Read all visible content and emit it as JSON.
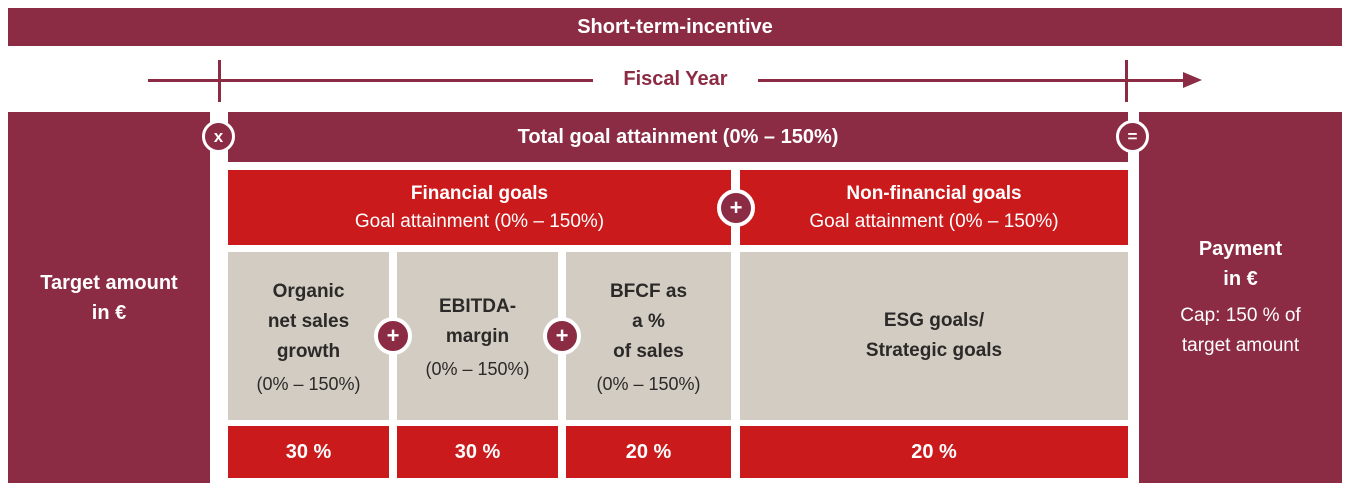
{
  "colors": {
    "maroon": "#8c2b44",
    "red": "#cb1a1c",
    "gray": "#d3ccc3",
    "text_dark": "#2b2a28",
    "white": "#ffffff"
  },
  "header": {
    "title": "Short-term-incentive"
  },
  "timeline": {
    "label": "Fiscal Year"
  },
  "operators": {
    "multiply": "x",
    "equals": "=",
    "plus": "+"
  },
  "left_panel": {
    "line1": "Target amount",
    "line2": "in €"
  },
  "right_panel": {
    "line1": "Payment",
    "line2": "in €",
    "line3": "Cap: 150 % of",
    "line4": "target amount"
  },
  "total_bar": {
    "label": "Total goal attainment (0% – 150%)"
  },
  "goal_groups": [
    {
      "title": "Financial goals",
      "subtitle": "Goal attainment (0% – 150%)"
    },
    {
      "title": "Non-financial goals",
      "subtitle": "Goal attainment (0% – 150%)"
    }
  ],
  "criteria": [
    {
      "name_lines": [
        "Organic",
        "net sales",
        "growth"
      ],
      "range": "(0% – 150%)",
      "weight": "30 %"
    },
    {
      "name_lines": [
        "EBITDA-",
        "margin"
      ],
      "range": "(0% – 150%)",
      "weight": "30 %"
    },
    {
      "name_lines": [
        "BFCF as",
        "a %",
        "of sales"
      ],
      "range": "(0% – 150%)",
      "weight": "20 %"
    },
    {
      "name_lines": [
        "ESG goals/",
        "Strategic goals"
      ],
      "range": "",
      "weight": "20 %"
    }
  ]
}
